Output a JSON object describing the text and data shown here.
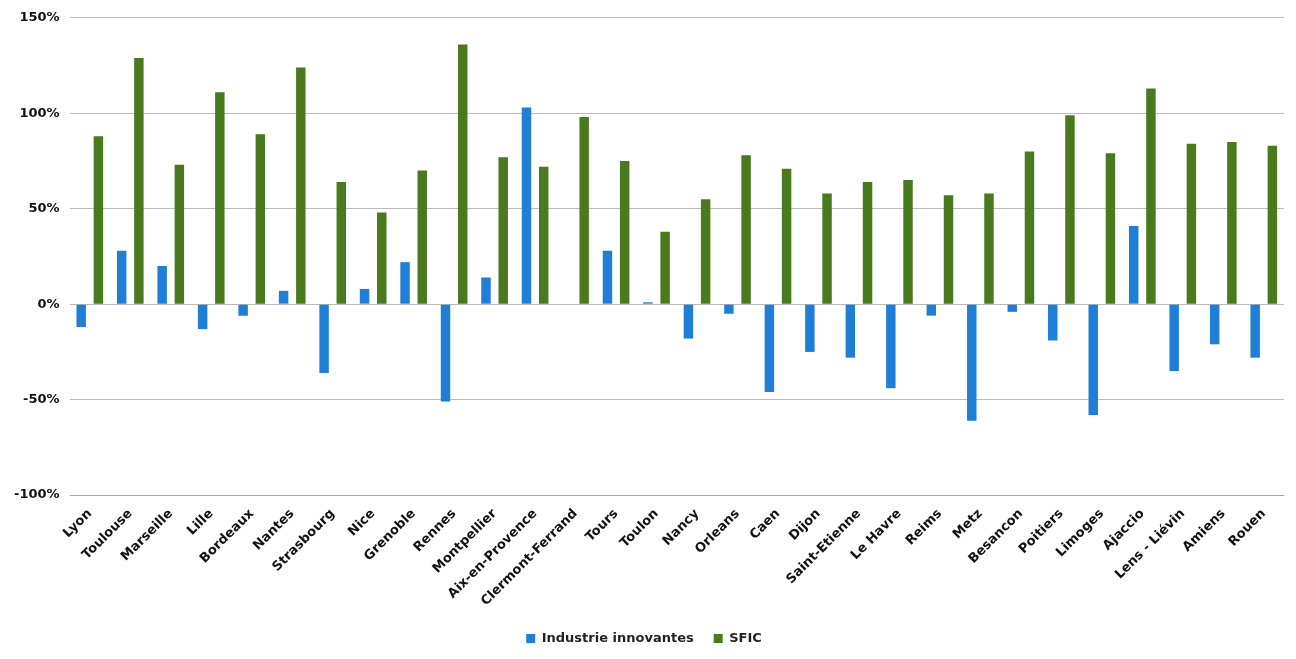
{
  "chart_data": {
    "type": "bar",
    "categories": [
      "Lyon",
      "Toulouse",
      "Marseille",
      "Lille",
      "Bordeaux",
      "Nantes",
      "Strasbourg",
      "Nice",
      "Grenoble",
      "Rennes",
      "Montpellier",
      "Aix-en-Provence",
      "Clermont-Ferrand",
      "Tours",
      "Toulon",
      "Nancy",
      "Orleans",
      "Caen",
      "Dijon",
      "Saint-Etienne",
      "Le Havre",
      "Reims",
      "Metz",
      "Besancon",
      "Poitiers",
      "Limoges",
      "Ajaccio",
      "Lens - Liévin",
      "Amiens",
      "Rouen"
    ],
    "series": [
      {
        "name": "Industrie innovantes",
        "color": "#1f7fd6",
        "values": [
          -12,
          28,
          20,
          -13,
          -6,
          7,
          -36,
          8,
          22,
          -51,
          14,
          103,
          0,
          28,
          1,
          -18,
          -5,
          -46,
          -25,
          -28,
          -44,
          -6,
          -61,
          -4,
          -19,
          -58,
          41,
          -35,
          -21,
          -28
        ]
      },
      {
        "name": "SFIC",
        "color": "#4a7a1e",
        "values": [
          88,
          129,
          73,
          111,
          89,
          124,
          64,
          48,
          70,
          136,
          77,
          72,
          98,
          75,
          38,
          55,
          78,
          71,
          58,
          64,
          65,
          57,
          58,
          80,
          99,
          79,
          113,
          84,
          85,
          83
        ]
      }
    ],
    "ylim": [
      -100,
      150
    ],
    "yticks": [
      {
        "value": -100,
        "label": "-100%"
      },
      {
        "value": -50,
        "label": "-50%"
      },
      {
        "value": 0,
        "label": "0%"
      },
      {
        "value": 50,
        "label": "50%"
      },
      {
        "value": 100,
        "label": "100%"
      },
      {
        "value": 150,
        "label": "150%"
      }
    ],
    "grid": "y",
    "legend": "bottom"
  }
}
